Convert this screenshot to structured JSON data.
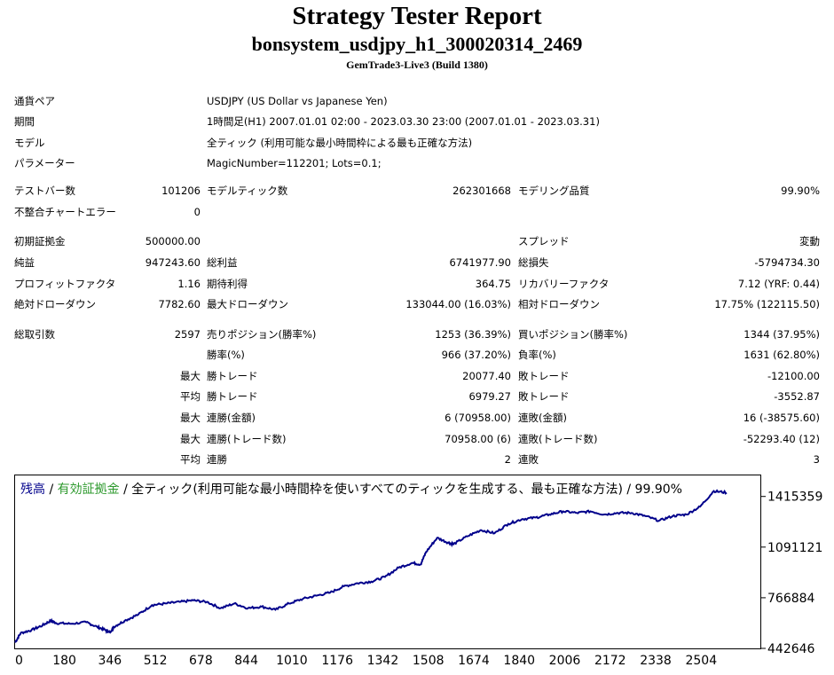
{
  "report": {
    "title": "Strategy Tester Report",
    "subtitle": "bonsystem_usdjpy_h1_300020314_2469",
    "build": "GemTrade3-Live3 (Build 1380)"
  },
  "info": {
    "symbol_label": "通貨ペア",
    "symbol_value": "USDJPY (US Dollar vs Japanese Yen)",
    "period_label": "期間",
    "period_value": "1時間足(H1) 2007.01.01 02:00 - 2023.03.30 23:00 (2007.01.01 - 2023.03.31)",
    "model_label": "モデル",
    "model_value": "全ティック (利用可能な最小時間枠による最も正確な方法)",
    "params_label": "パラメーター",
    "params_value": "MagicNumber=112201; Lots=0.1;"
  },
  "stats": {
    "bars_label": "テストバー数",
    "bars_value": "101206",
    "ticks_label": "モデルティック数",
    "ticks_value": "262301668",
    "quality_label": "モデリング品質",
    "quality_value": "99.90%",
    "errors_label": "不整合チャートエラー",
    "errors_value": "0",
    "deposit_label": "初期証拠金",
    "deposit_value": "500000.00",
    "spread_label": "スプレッド",
    "spread_value": "変動",
    "net_label": "純益",
    "net_value": "947243.60",
    "gross_profit_label": "総利益",
    "gross_profit_value": "6741977.90",
    "gross_loss_label": "総損失",
    "gross_loss_value": "-5794734.30",
    "pf_label": "プロフィットファクタ",
    "pf_value": "1.16",
    "expected_label": "期待利得",
    "expected_value": "364.75",
    "recovery_label": "リカバリーファクタ",
    "recovery_value": "7.12 (YRF: 0.44)",
    "abs_dd_label": "絶対ドローダウン",
    "abs_dd_value": "7782.60",
    "max_dd_label": "最大ドローダウン",
    "max_dd_value": "133044.00 (16.03%)",
    "rel_dd_label": "相対ドローダウン",
    "rel_dd_value": "17.75% (122115.50)",
    "trades_label": "総取引数",
    "trades_value": "2597",
    "short_label": "売りポジション(勝率%)",
    "short_value": "1253 (36.39%)",
    "long_label": "買いポジション(勝率%)",
    "long_value": "1344 (37.95%)",
    "win_label": "勝率(%)",
    "win_value": "966 (37.20%)",
    "loss_label": "負率(%)",
    "loss_value": "1631 (62.80%)",
    "max_label": "最大",
    "avg_label": "平均",
    "largest_win_label": "勝トレード",
    "largest_win_value": "20077.40",
    "largest_loss_label": "敗トレード",
    "largest_loss_value": "-12100.00",
    "avg_win_label": "勝トレード",
    "avg_win_value": "6979.27",
    "avg_loss_label": "敗トレード",
    "avg_loss_value": "-3552.87",
    "max_cons_wins_label": "連勝(金額)",
    "max_cons_wins_value": "6 (70958.00)",
    "max_cons_losses_label": "連敗(金額)",
    "max_cons_losses_value": "16 (-38575.60)",
    "max_cons_profit_label": "連勝(トレード数)",
    "max_cons_profit_value": "70958.00 (6)",
    "max_cons_loss_label": "連敗(トレード数)",
    "max_cons_loss_value": "-52293.40 (12)",
    "avg_cons_wins_label": "連勝",
    "avg_cons_wins_value": "2",
    "avg_cons_losses_label": "連敗",
    "avg_cons_losses_value": "3"
  },
  "chart_caption": {
    "balance": "残高",
    "sep1": " / ",
    "equity": "有効証拠金",
    "rest": " / 全ティック(利用可能な最小時間枠を使いすべてのティックを生成する、最も正確な方法) / 99.90%"
  },
  "colors": {
    "balance": "#00008b",
    "equity": "#2e9a2e"
  },
  "chart_data": {
    "type": "line",
    "series": [
      {
        "name": "残高",
        "x": [
          0,
          20,
          60,
          100,
          130,
          150,
          200,
          260,
          300,
          330,
          346,
          360,
          400,
          450,
          500,
          550,
          600,
          650,
          700,
          750,
          800,
          850,
          900,
          950,
          1000,
          1050,
          1100,
          1150,
          1200,
          1250,
          1300,
          1350,
          1400,
          1450,
          1480,
          1500,
          1540,
          1580,
          1600,
          1650,
          1700,
          1750,
          1800,
          1850,
          1900,
          1950,
          2000,
          2050,
          2100,
          2150,
          2200,
          2250,
          2300,
          2350,
          2400,
          2450,
          2500,
          2550,
          2597
        ],
        "values": [
          480000,
          540000,
          560000,
          590000,
          620000,
          605000,
          600000,
          610000,
          580000,
          560000,
          545000,
          580000,
          620000,
          660000,
          720000,
          730000,
          740000,
          750000,
          740000,
          700000,
          730000,
          700000,
          710000,
          690000,
          730000,
          760000,
          780000,
          800000,
          840000,
          860000,
          870000,
          900000,
          960000,
          990000,
          980000,
          1060000,
          1150000,
          1120000,
          1110000,
          1160000,
          1200000,
          1180000,
          1240000,
          1270000,
          1280000,
          1300000,
          1320000,
          1310000,
          1320000,
          1300000,
          1310000,
          1310000,
          1290000,
          1260000,
          1290000,
          1300000,
          1350000,
          1450000,
          1440000
        ]
      }
    ],
    "x_ticks": [
      "0",
      "180",
      "346",
      "512",
      "678",
      "844",
      "1010",
      "1176",
      "1342",
      "1508",
      "1674",
      "1840",
      "2006",
      "2172",
      "2338",
      "2504"
    ],
    "y_ticks": [
      "1415359",
      "1091121",
      "766884",
      "442646"
    ],
    "xlim": [
      0,
      2720
    ],
    "ylim": [
      442646,
      1550000
    ],
    "grid": false
  }
}
